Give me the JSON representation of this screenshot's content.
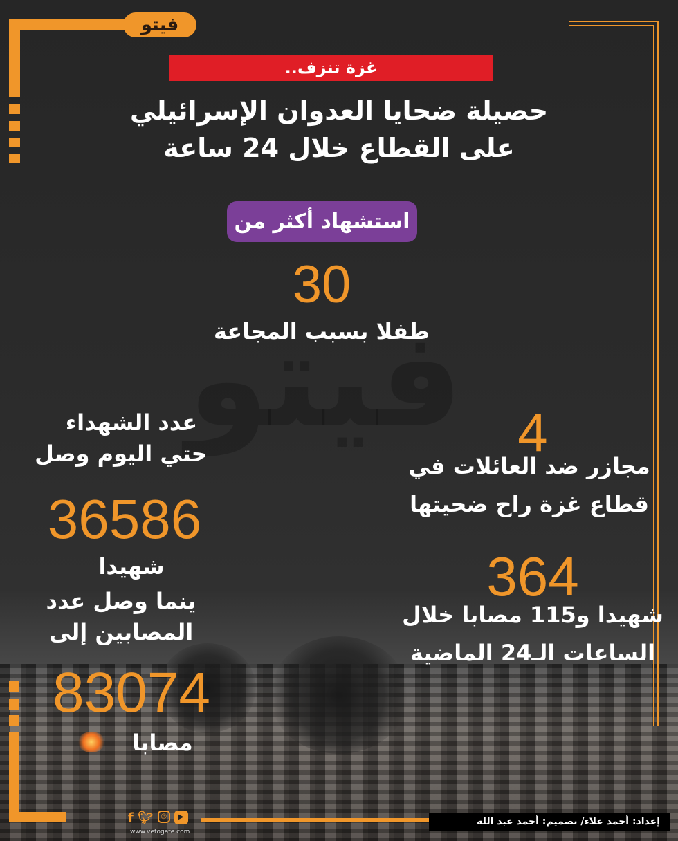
{
  "logo": {
    "text": "فيتو"
  },
  "banner": {
    "label": "غزة تنزف.."
  },
  "title": {
    "line1": "حصيلة ضحايا العدوان الإسرائيلي",
    "line2": "على القطاع خلال 24 ساعة"
  },
  "pill": {
    "label": "استشهاد أكثر من"
  },
  "children": {
    "number": "30",
    "caption": "طفلا بسبب المجاعة"
  },
  "massacres": {
    "number": "4",
    "line1": "مجازر ضد العائلات في",
    "line2": "قطاع غزة راح ضحيتها"
  },
  "daily": {
    "number": "364",
    "line1": "شهيدا و115 مصابا خلال",
    "line2": "الساعات الـ24 الماضية"
  },
  "total": {
    "intro1": "عدد الشهداء",
    "intro2": "حتي اليوم وصل",
    "martyrs": "36586",
    "martyrs_label": "شهيدا",
    "mid1": "ينما وصل عدد",
    "mid2": "المصابين إلى",
    "injured": "83074",
    "injured_label": "مصابا"
  },
  "footer": {
    "credits": "إعداد: أحمد علاء/ تصميم: أحمد عبد الله",
    "url": "www.vetogate.com",
    "social": [
      "facebook-icon",
      "twitter-icon",
      "instagram-icon",
      "youtube-icon"
    ]
  },
  "colors": {
    "accent": "#f0962a",
    "banner": "#e01e26",
    "pill": "#7b3f98"
  }
}
